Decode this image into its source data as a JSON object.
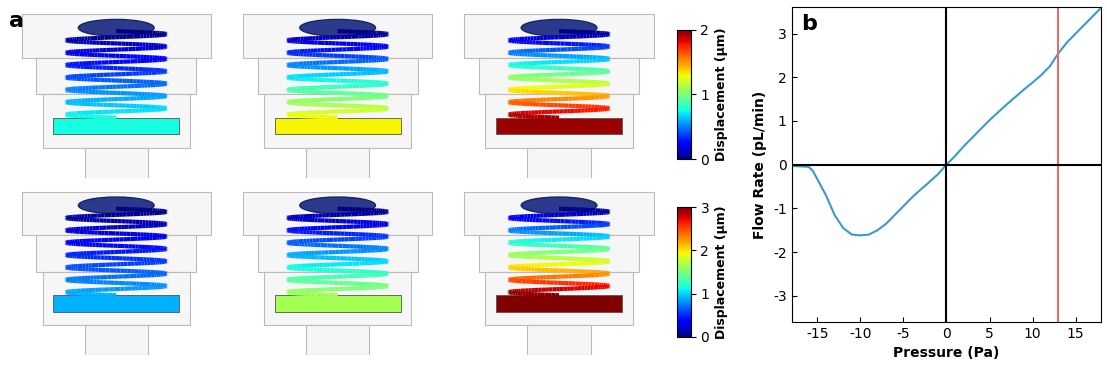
{
  "panel_a": {
    "label": "a",
    "rows": [
      {
        "colorbar": {
          "label": "Displacement (μm)",
          "range": [
            0,
            2
          ],
          "ticks": [
            0,
            1,
            2
          ]
        },
        "tip_displacement": [
          0.75,
          1.3,
          1.95
        ]
      },
      {
        "colorbar": {
          "label": "Displacement (μm)",
          "range": [
            0,
            3
          ],
          "ticks": [
            0,
            1,
            2,
            3
          ]
        },
        "tip_displacement": [
          0.9,
          1.65,
          3.0
        ]
      }
    ]
  },
  "chart_data": {
    "type": "line",
    "panel_label": "b",
    "x_label": "Pressure (Pa)",
    "y_label": "Flow Rate (pL/min)",
    "x": [
      -18,
      -16,
      -15.5,
      -14,
      -13,
      -12,
      -11,
      -10,
      -9,
      -8,
      -7,
      -6,
      -5,
      -4,
      -3,
      -2,
      -1,
      0,
      1,
      2,
      3,
      4,
      5,
      6,
      7,
      8,
      9,
      10,
      11,
      12,
      13,
      14,
      15,
      16,
      17,
      18
    ],
    "values": [
      -0.03,
      -0.05,
      -0.15,
      -0.7,
      -1.15,
      -1.45,
      -1.6,
      -1.62,
      -1.6,
      -1.5,
      -1.35,
      -1.15,
      -0.95,
      -0.75,
      -0.57,
      -0.4,
      -0.22,
      0,
      0.2,
      0.42,
      0.62,
      0.82,
      1.02,
      1.2,
      1.38,
      1.55,
      1.72,
      1.88,
      2.05,
      2.25,
      2.55,
      2.8,
      3.0,
      3.2,
      3.4,
      3.6
    ],
    "color": "#3a9bc8",
    "vline": {
      "x": 13,
      "color": "#e07070"
    },
    "xlim": [
      -18,
      18
    ],
    "ylim": [
      -3.6,
      3.6
    ],
    "xticks": [
      -15,
      -10,
      -5,
      0,
      5,
      10,
      15
    ],
    "yticks": [
      -3,
      -2,
      -1,
      0,
      1,
      2,
      3
    ],
    "grid": false
  }
}
